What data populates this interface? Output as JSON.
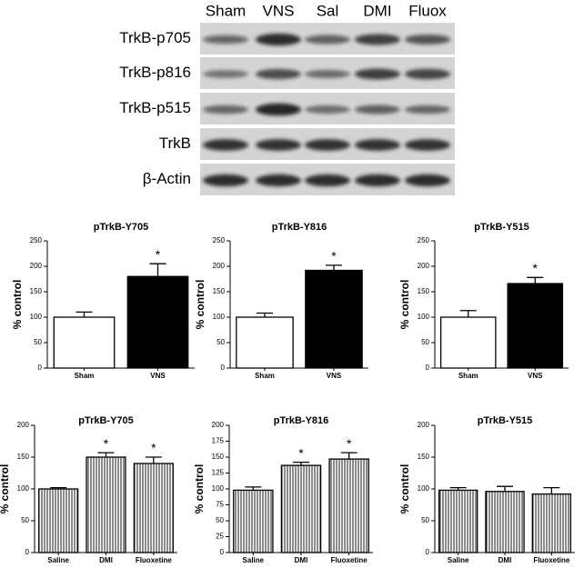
{
  "blot": {
    "lanes": [
      "Sham",
      "VNS",
      "Sal",
      "DMI",
      "Fluox"
    ],
    "rows": [
      "TrkB-p705",
      "TrkB-p816",
      "TrkB-p515",
      "TrkB",
      "β-Actin"
    ]
  },
  "chart_data": [
    {
      "type": "bar",
      "title": "pTrkB-Y705",
      "ylabel": "% control",
      "categories": [
        "Sham",
        "VNS"
      ],
      "values": [
        100,
        180
      ],
      "errors": [
        10,
        25
      ],
      "colors": [
        "#ffffff",
        "#000000"
      ],
      "ylim": [
        0,
        250
      ],
      "yticks": [
        0,
        50,
        100,
        150,
        200,
        250
      ],
      "annotations": [
        {
          "text": "*",
          "category": "VNS"
        }
      ]
    },
    {
      "type": "bar",
      "title": "pTrkB-Y816",
      "ylabel": "% control",
      "categories": [
        "Sham",
        "VNS"
      ],
      "values": [
        100,
        192
      ],
      "errors": [
        8,
        10
      ],
      "colors": [
        "#ffffff",
        "#000000"
      ],
      "ylim": [
        0,
        250
      ],
      "yticks": [
        0,
        50,
        100,
        150,
        200,
        250
      ],
      "annotations": [
        {
          "text": "*",
          "category": "VNS"
        }
      ]
    },
    {
      "type": "bar",
      "title": "pTrkB-Y515",
      "ylabel": "% control",
      "categories": [
        "Sham",
        "VNS"
      ],
      "values": [
        100,
        166
      ],
      "errors": [
        13,
        12
      ],
      "colors": [
        "#ffffff",
        "#000000"
      ],
      "ylim": [
        0,
        250
      ],
      "yticks": [
        0,
        50,
        100,
        150,
        200,
        250
      ],
      "annotations": [
        {
          "text": "*",
          "category": "VNS"
        }
      ]
    },
    {
      "type": "bar",
      "title": "pTrkB-Y705",
      "ylabel": "% control",
      "categories": [
        "Saline",
        "DMI",
        "Fluoxetine"
      ],
      "values": [
        100,
        150,
        140
      ],
      "errors": [
        2,
        7,
        10
      ],
      "pattern": "vertical-hatch",
      "ylim": [
        0,
        200
      ],
      "yticks": [
        0,
        50,
        100,
        150,
        200
      ],
      "annotations": [
        {
          "text": "*",
          "category": "DMI"
        },
        {
          "text": "*",
          "category": "Fluoxetine"
        }
      ]
    },
    {
      "type": "bar",
      "title": "pTrkB-Y816",
      "ylabel": "% control",
      "categories": [
        "Saline",
        "DMI",
        "Fluoxetine"
      ],
      "values": [
        98,
        137,
        147
      ],
      "errors": [
        5,
        5,
        10
      ],
      "pattern": "vertical-hatch",
      "ylim": [
        0,
        200
      ],
      "yticks": [
        0,
        25,
        50,
        75,
        100,
        125,
        150,
        175,
        200
      ],
      "annotations": [
        {
          "text": "*",
          "category": "DMI"
        },
        {
          "text": "*",
          "category": "Fluoxetine"
        }
      ]
    },
    {
      "type": "bar",
      "title": "pTrkB-Y515",
      "ylabel": "% control",
      "categories": [
        "Saline",
        "DMI",
        "Fluoxetine"
      ],
      "values": [
        98,
        96,
        92
      ],
      "errors": [
        4,
        8,
        10
      ],
      "pattern": "vertical-hatch",
      "ylim": [
        0,
        200
      ],
      "yticks": [
        0,
        50,
        100,
        150,
        200
      ]
    }
  ]
}
